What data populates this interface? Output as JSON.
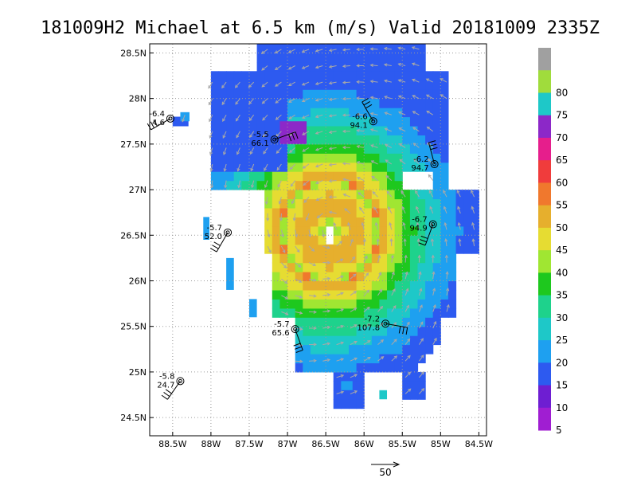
{
  "chart_data": {
    "type": "heatmap",
    "title": "181009H2 Michael at 6.5 km (m/s) Valid 20181009  2335Z",
    "xlabel": "",
    "ylabel": "",
    "xlim": [
      -88.8,
      -84.4
    ],
    "ylim": [
      24.3,
      28.6
    ],
    "grid": true,
    "x_ticks": [
      {
        "value": -88.5,
        "label": "88.5W"
      },
      {
        "value": -88.0,
        "label": "88W"
      },
      {
        "value": -87.5,
        "label": "87.5W"
      },
      {
        "value": -87.0,
        "label": "87W"
      },
      {
        "value": -86.5,
        "label": "86.5W"
      },
      {
        "value": -86.0,
        "label": "86W"
      },
      {
        "value": -85.5,
        "label": "85.5W"
      },
      {
        "value": -85.0,
        "label": "85W"
      },
      {
        "value": -84.5,
        "label": "84.5W"
      }
    ],
    "y_ticks": [
      {
        "value": 24.5,
        "label": "24.5N"
      },
      {
        "value": 25.0,
        "label": "25N"
      },
      {
        "value": 25.5,
        "label": "25.5N"
      },
      {
        "value": 26.0,
        "label": "26N"
      },
      {
        "value": 26.5,
        "label": "26.5N"
      },
      {
        "value": 27.0,
        "label": "27N"
      },
      {
        "value": 27.5,
        "label": "27.5N"
      },
      {
        "value": 28.0,
        "label": "28N"
      },
      {
        "value": 28.5,
        "label": "28.5N"
      }
    ],
    "storm_center": {
      "lon": -86.45,
      "lat": 26.55
    },
    "colorbar": {
      "levels": [
        {
          "label": "",
          "color": "#a0a0a0"
        },
        {
          "label": "80",
          "color": "#a0dc3c"
        },
        {
          "label": "75",
          "color": "#1ec8c8"
        },
        {
          "label": "70",
          "color": "#8c28c8"
        },
        {
          "label": "65",
          "color": "#e61e8c"
        },
        {
          "label": "60",
          "color": "#f03c3c"
        },
        {
          "label": "55",
          "color": "#f0782d"
        },
        {
          "label": "50",
          "color": "#e6af2d"
        },
        {
          "label": "45",
          "color": "#e6dc32"
        },
        {
          "label": "40",
          "color": "#a0e632"
        },
        {
          "label": "35",
          "color": "#1ec81e"
        },
        {
          "label": "30",
          "color": "#1ed28c"
        },
        {
          "label": "25",
          "color": "#1ec8c8"
        },
        {
          "label": "20",
          "color": "#1ea0f0"
        },
        {
          "label": "15",
          "color": "#2d5af0"
        },
        {
          "label": "10",
          "color": "#6e1ed2"
        },
        {
          "label": "5",
          "color": "#a01ed2"
        }
      ]
    },
    "stations": [
      {
        "lon": -88.53,
        "lat": 27.78,
        "t": "-6.4",
        "v": "4.6",
        "barb_dir": 240,
        "label_side": "left"
      },
      {
        "lon": -87.17,
        "lat": 27.55,
        "t": "-5.5",
        "v": "66.1",
        "barb_dir": 70,
        "label_side": "left"
      },
      {
        "lon": -85.88,
        "lat": 27.75,
        "t": "-6.6",
        "v": "94.1",
        "barb_dir": 330,
        "label_side": "left"
      },
      {
        "lon": -85.08,
        "lat": 27.28,
        "t": "-6.2",
        "v": "94.7",
        "barb_dir": 345,
        "label_side": "left"
      },
      {
        "lon": -87.78,
        "lat": 26.53,
        "t": "-5.7",
        "v": "52.0",
        "barb_dir": 210,
        "label_side": "left"
      },
      {
        "lon": -85.1,
        "lat": 26.62,
        "t": "-6.7",
        "v": "94.9",
        "barb_dir": 200,
        "label_side": "left"
      },
      {
        "lon": -86.9,
        "lat": 25.47,
        "t": "-5.7",
        "v": "65.6",
        "barb_dir": 160,
        "label_side": "left"
      },
      {
        "lon": -85.72,
        "lat": 25.53,
        "t": "-7.2",
        "v": "107.8",
        "barb_dir": 100,
        "label_side": "left"
      },
      {
        "lon": -88.4,
        "lat": 24.9,
        "t": "-5.8",
        "v": "24.7",
        "barb_dir": 215,
        "label_side": "left"
      }
    ],
    "reference_vector": {
      "value": "50",
      "label": "50"
    }
  }
}
